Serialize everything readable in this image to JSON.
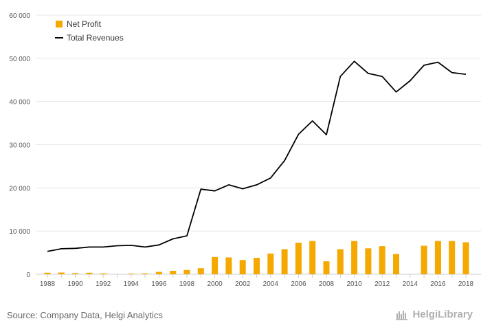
{
  "colors": {
    "bar": "#F5A800",
    "line": "#000000",
    "grid": "#e6e6e6"
  },
  "chart_data": {
    "type": "bar+line",
    "title": "",
    "xlabel": "",
    "ylabel": "",
    "ylim": [
      0,
      60000
    ],
    "y_ticks": [
      0,
      10000,
      20000,
      30000,
      40000,
      50000,
      60000
    ],
    "y_tick_labels": [
      "0",
      "10 000",
      "20 000",
      "30 000",
      "40 000",
      "50 000",
      "60 000"
    ],
    "x_tick_labels": [
      "1988",
      "1990",
      "1992",
      "1994",
      "1996",
      "1998",
      "2000",
      "2002",
      "2004",
      "2006",
      "2008",
      "2010",
      "2012",
      "2014",
      "2016",
      "2018"
    ],
    "years": [
      1988,
      1989,
      1990,
      1991,
      1992,
      1993,
      1994,
      1995,
      1996,
      1997,
      1998,
      1999,
      2000,
      2001,
      2002,
      2003,
      2004,
      2005,
      2006,
      2007,
      2008,
      2009,
      2010,
      2011,
      2012,
      2013,
      2014,
      2015,
      2016,
      2017,
      2018
    ],
    "legend_position": "top-left",
    "series": [
      {
        "name": "Net Profit",
        "kind": "bar",
        "values": [
          350,
          400,
          250,
          350,
          200,
          0,
          150,
          200,
          550,
          800,
          1000,
          1400,
          4000,
          3900,
          3300,
          3800,
          4800,
          5800,
          7300,
          7700,
          3000,
          5800,
          7700,
          6000,
          6500,
          4700,
          0,
          6600,
          7700,
          7700,
          7400
        ]
      },
      {
        "name": "Total Revenues",
        "kind": "line",
        "values": [
          5300,
          5900,
          6000,
          6300,
          6300,
          6600,
          6700,
          6300,
          6800,
          8200,
          8900,
          19700,
          19300,
          20700,
          19800,
          20700,
          22300,
          26300,
          32400,
          35500,
          32300,
          45800,
          49300,
          46500,
          45800,
          42200,
          44800,
          48400,
          49100,
          46700,
          46300
        ]
      }
    ]
  },
  "footer": {
    "source": "Source: Company Data, Helgi Analytics",
    "brand": "HelgiLibrary"
  }
}
